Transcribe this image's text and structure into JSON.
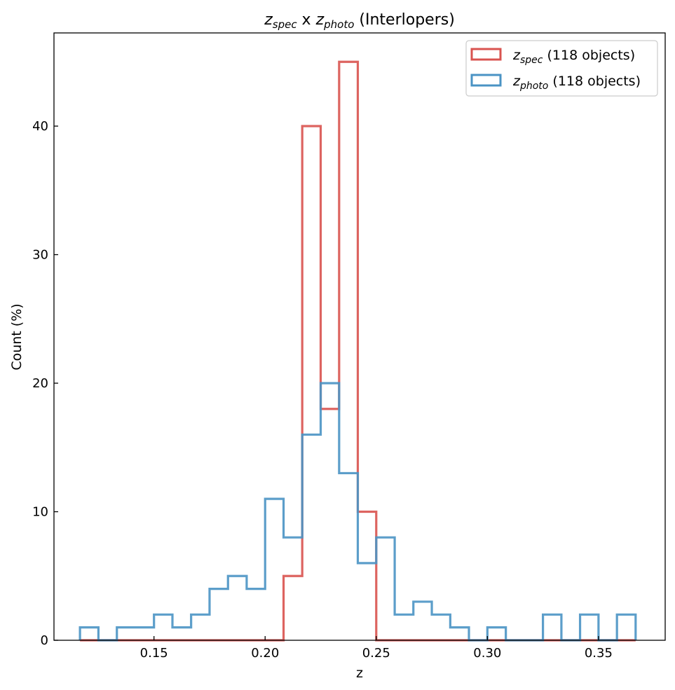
{
  "chart_data": {
    "type": "histogram-step",
    "title": {
      "var1": "z",
      "sub1": "spec",
      "sep": " x ",
      "var2": "z",
      "sub2": "photo",
      "suffix": " (Interlopers)"
    },
    "xlabel": "z",
    "ylabel": "Count (%)",
    "xlim": [
      0.105,
      0.38
    ],
    "ylim": [
      0,
      47.25
    ],
    "xticks": [
      0.15,
      0.2,
      0.25,
      0.3,
      0.35
    ],
    "xtick_labels": [
      "0.15",
      "0.20",
      "0.25",
      "0.30",
      "0.35"
    ],
    "yticks": [
      0,
      10,
      20,
      30,
      40
    ],
    "ytick_labels": [
      "0",
      "10",
      "20",
      "30",
      "40"
    ],
    "legend_position": "top-right",
    "series": [
      {
        "name": "zspec",
        "label_var": "z",
        "label_sub": "spec",
        "label_rest": " (118 objects)",
        "color": "#d9534f",
        "bin_edges": [
          0.1167,
          0.125,
          0.1333,
          0.1417,
          0.15,
          0.1583,
          0.1667,
          0.175,
          0.1833,
          0.1917,
          0.2,
          0.2083,
          0.2167,
          0.225,
          0.2333,
          0.2417,
          0.25,
          0.2583,
          0.2667,
          0.275,
          0.2833,
          0.2917,
          0.3,
          0.3083,
          0.3167,
          0.325,
          0.3333,
          0.3417,
          0.35,
          0.3583,
          0.3667
        ],
        "values": [
          0,
          0,
          0,
          0,
          0,
          0,
          0,
          0,
          0,
          0,
          0,
          5,
          40,
          18,
          45,
          10,
          0,
          0,
          0,
          0,
          0,
          0,
          0,
          0,
          0,
          0,
          0,
          0,
          0,
          0
        ]
      },
      {
        "name": "zphoto",
        "label_var": "z",
        "label_sub": "photo",
        "label_rest": " (118 objects)",
        "color": "#4a93c4",
        "bin_edges": [
          0.1167,
          0.125,
          0.1333,
          0.1417,
          0.15,
          0.1583,
          0.1667,
          0.175,
          0.1833,
          0.1917,
          0.2,
          0.2083,
          0.2167,
          0.225,
          0.2333,
          0.2417,
          0.25,
          0.2583,
          0.2667,
          0.275,
          0.2833,
          0.2917,
          0.3,
          0.3083,
          0.3167,
          0.325,
          0.3333,
          0.3417,
          0.35,
          0.3583,
          0.3667
        ],
        "values": [
          1,
          0,
          1,
          1,
          2,
          1,
          2,
          4,
          5,
          4,
          11,
          8,
          16,
          20,
          13,
          6,
          8,
          2,
          3,
          2,
          1,
          0,
          1,
          0,
          0,
          2,
          0,
          2,
          0,
          2
        ]
      }
    ]
  }
}
